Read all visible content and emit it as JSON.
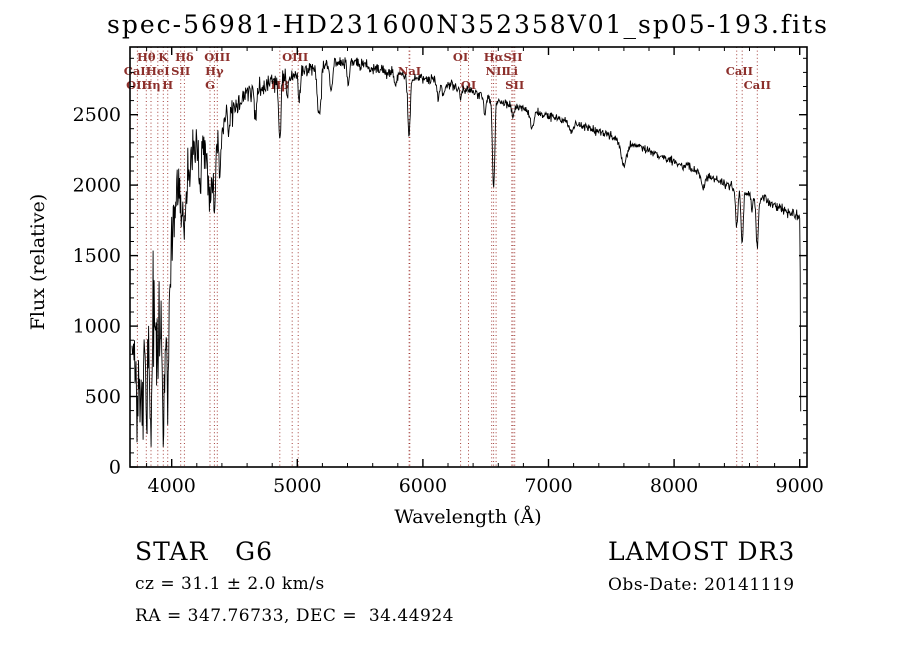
{
  "title": "spec-56981-HD231600N352358V01_sp05-193.fits",
  "annotations": {
    "class_label": "STAR   G6",
    "cz_label": "cz = 31.1 ± 2.0 km/s",
    "radec_label": "RA = 347.76733, DEC =  34.44924",
    "survey_label": "LAMOST DR3",
    "obsdate_label": "Obs-Date: 20141119"
  },
  "colors": {
    "background": "#ffffff",
    "spectrum": "#000000",
    "marker_line": "#a43f3a",
    "marker_label": "#8c2f2b",
    "axis": "#000000"
  },
  "chart_data": {
    "type": "line",
    "title": "spec-56981-HD231600N352358V01_sp05-193.fits",
    "xlabel": "Wavelength (Å)",
    "ylabel": "Flux (relative)",
    "xlim": [
      3668,
      9058
    ],
    "ylim": [
      0,
      2980
    ],
    "xticks": [
      4000,
      5000,
      6000,
      7000,
      8000,
      9000
    ],
    "yticks": [
      0,
      500,
      1000,
      1500,
      2000,
      2500
    ],
    "grid": false,
    "spectral_lines": [
      3727,
      3798,
      3835,
      3889,
      3933,
      3968,
      4072,
      4101,
      4305,
      4340,
      4363,
      4861,
      4959,
      5007,
      5890,
      5896,
      6300,
      6363,
      6548,
      6563,
      6583,
      6708,
      6717,
      6731,
      8498,
      8542,
      8662
    ],
    "line_labels": [
      {
        "text": "Hθ",
        "wl": 3798,
        "row": 0
      },
      {
        "text": "K",
        "wl": 3933,
        "row": 0
      },
      {
        "text": "Hδ",
        "wl": 4101,
        "row": 0
      },
      {
        "text": "CaII",
        "wl": 3727,
        "row": 1
      },
      {
        "text": "HeI",
        "wl": 3889,
        "row": 1
      },
      {
        "text": "SII",
        "wl": 4072,
        "row": 1
      },
      {
        "text": "OII",
        "wl": 3720,
        "row": 2
      },
      {
        "text": "Hη",
        "wl": 3835,
        "row": 2
      },
      {
        "text": "H",
        "wl": 3968,
        "row": 2
      },
      {
        "text": "OIII",
        "wl": 4363,
        "row": 0
      },
      {
        "text": "Hγ",
        "wl": 4340,
        "row": 1
      },
      {
        "text": "G",
        "wl": 4305,
        "row": 2
      },
      {
        "text": "OIII",
        "wl": 4983,
        "row": 0
      },
      {
        "text": "Hβ",
        "wl": 4861,
        "row": 2
      },
      {
        "text": "NaI",
        "wl": 5893,
        "row": 1
      },
      {
        "text": "OI",
        "wl": 6300,
        "row": 0
      },
      {
        "text": "Hα",
        "wl": 6563,
        "row": 0
      },
      {
        "text": "SII",
        "wl": 6717,
        "row": 0
      },
      {
        "text": "NII",
        "wl": 6583,
        "row": 1
      },
      {
        "text": "Li",
        "wl": 6708,
        "row": 1
      },
      {
        "text": "OI",
        "wl": 6363,
        "row": 2
      },
      {
        "text": "SII",
        "wl": 6731,
        "row": 2
      },
      {
        "text": "CaII",
        "wl": 8520,
        "row": 1
      },
      {
        "text": "CaII",
        "wl": 8662,
        "row": 2
      }
    ],
    "spectrum": {
      "domain": [
        3684,
        9008
      ],
      "step": 4,
      "continuum": [
        [
          3684,
          700
        ],
        [
          3695,
          950
        ],
        [
          3710,
          930
        ],
        [
          3730,
          900
        ],
        [
          3750,
          890
        ],
        [
          3770,
          890
        ],
        [
          3790,
          930
        ],
        [
          3810,
          970
        ],
        [
          3830,
          1010
        ],
        [
          3850,
          1050
        ],
        [
          3880,
          1100
        ],
        [
          3910,
          1140
        ],
        [
          3940,
          1160
        ],
        [
          3965,
          1190
        ],
        [
          3985,
          1320
        ],
        [
          4000,
          1620
        ],
        [
          4015,
          1840
        ],
        [
          4035,
          1990
        ],
        [
          4060,
          2040
        ],
        [
          4090,
          2060
        ],
        [
          4120,
          2140
        ],
        [
          4150,
          2210
        ],
        [
          4180,
          2220
        ],
        [
          4210,
          2240
        ],
        [
          4240,
          2300
        ],
        [
          4270,
          2290
        ],
        [
          4300,
          2270
        ],
        [
          4330,
          2280
        ],
        [
          4360,
          2310
        ],
        [
          4400,
          2430
        ],
        [
          4450,
          2510
        ],
        [
          4500,
          2565
        ],
        [
          4600,
          2635
        ],
        [
          4700,
          2695
        ],
        [
          4800,
          2740
        ],
        [
          4900,
          2770
        ],
        [
          5000,
          2800
        ],
        [
          5100,
          2822
        ],
        [
          5200,
          2848
        ],
        [
          5300,
          2870
        ],
        [
          5400,
          2868
        ],
        [
          5500,
          2852
        ],
        [
          5600,
          2830
        ],
        [
          5700,
          2808
        ],
        [
          5800,
          2790
        ],
        [
          5900,
          2772
        ],
        [
          6000,
          2750
        ],
        [
          6100,
          2730
        ],
        [
          6200,
          2710
        ],
        [
          6300,
          2688
        ],
        [
          6400,
          2662
        ],
        [
          6500,
          2632
        ],
        [
          6600,
          2602
        ],
        [
          6700,
          2572
        ],
        [
          6800,
          2544
        ],
        [
          6900,
          2516
        ],
        [
          7000,
          2492
        ],
        [
          7100,
          2464
        ],
        [
          7200,
          2436
        ],
        [
          7300,
          2407
        ],
        [
          7400,
          2378
        ],
        [
          7500,
          2348
        ],
        [
          7600,
          2314
        ],
        [
          7700,
          2279
        ],
        [
          7800,
          2243
        ],
        [
          7900,
          2205
        ],
        [
          8000,
          2168
        ],
        [
          8100,
          2129
        ],
        [
          8200,
          2090
        ],
        [
          8300,
          2050
        ],
        [
          8400,
          2010
        ],
        [
          8500,
          1974
        ],
        [
          8600,
          1938
        ],
        [
          8700,
          1902
        ],
        [
          8800,
          1860
        ],
        [
          8900,
          1814
        ],
        [
          8950,
          1792
        ],
        [
          9000,
          1768
        ],
        [
          9004,
          1400
        ],
        [
          9008,
          420
        ]
      ],
      "absorption": [
        [
          3727,
          420,
          7
        ],
        [
          3750,
          360,
          6
        ],
        [
          3771,
          380,
          6
        ],
        [
          3798,
          520,
          7
        ],
        [
          3820,
          300,
          6
        ],
        [
          3835,
          560,
          7
        ],
        [
          3889,
          500,
          7
        ],
        [
          3933,
          800,
          9
        ],
        [
          3968,
          700,
          9
        ],
        [
          4026,
          220,
          7
        ],
        [
          4072,
          280,
          7
        ],
        [
          4101,
          540,
          9
        ],
        [
          4144,
          220,
          7
        ],
        [
          4227,
          320,
          7
        ],
        [
          4305,
          430,
          13
        ],
        [
          4340,
          450,
          9
        ],
        [
          4383,
          310,
          8
        ],
        [
          4457,
          180,
          8
        ],
        [
          4668,
          170,
          10
        ],
        [
          4861,
          470,
          9
        ],
        [
          4920,
          160,
          8
        ],
        [
          5015,
          220,
          8
        ],
        [
          5167,
          300,
          10
        ],
        [
          5185,
          230,
          9
        ],
        [
          5270,
          200,
          10
        ],
        [
          5406,
          170,
          8
        ],
        [
          5782,
          110,
          8
        ],
        [
          5890,
          430,
          10
        ],
        [
          6122,
          110,
          8
        ],
        [
          6162,
          90,
          7
        ],
        [
          6300,
          80,
          6
        ],
        [
          6494,
          130,
          9
        ],
        [
          6563,
          630,
          9
        ],
        [
          6717,
          90,
          7
        ],
        [
          6870,
          120,
          14
        ],
        [
          7180,
          70,
          12
        ],
        [
          7600,
          170,
          22
        ],
        [
          8230,
          100,
          14
        ],
        [
          8498,
          280,
          8
        ],
        [
          8542,
          380,
          9
        ],
        [
          8620,
          120,
          7
        ],
        [
          8662,
          360,
          9
        ]
      ],
      "noise_sigma": [
        [
          3684,
          300
        ],
        [
          3780,
          295
        ],
        [
          3880,
          285
        ],
        [
          3950,
          250
        ],
        [
          3990,
          210
        ],
        [
          4020,
          175
        ],
        [
          4080,
          150
        ],
        [
          4150,
          130
        ],
        [
          4250,
          115
        ],
        [
          4350,
          100
        ],
        [
          4450,
          80
        ],
        [
          4550,
          65
        ],
        [
          4650,
          57
        ],
        [
          4750,
          51
        ],
        [
          4850,
          47
        ],
        [
          4950,
          43
        ],
        [
          5100,
          38
        ],
        [
          5300,
          34
        ],
        [
          5500,
          32
        ],
        [
          5700,
          30
        ],
        [
          5900,
          29
        ],
        [
          6100,
          27
        ],
        [
          6400,
          25
        ],
        [
          6700,
          23
        ],
        [
          7000,
          22
        ],
        [
          7300,
          21
        ],
        [
          7600,
          21
        ],
        [
          7900,
          22
        ],
        [
          8200,
          24
        ],
        [
          8500,
          26
        ],
        [
          8800,
          27
        ],
        [
          9000,
          28
        ]
      ]
    }
  }
}
